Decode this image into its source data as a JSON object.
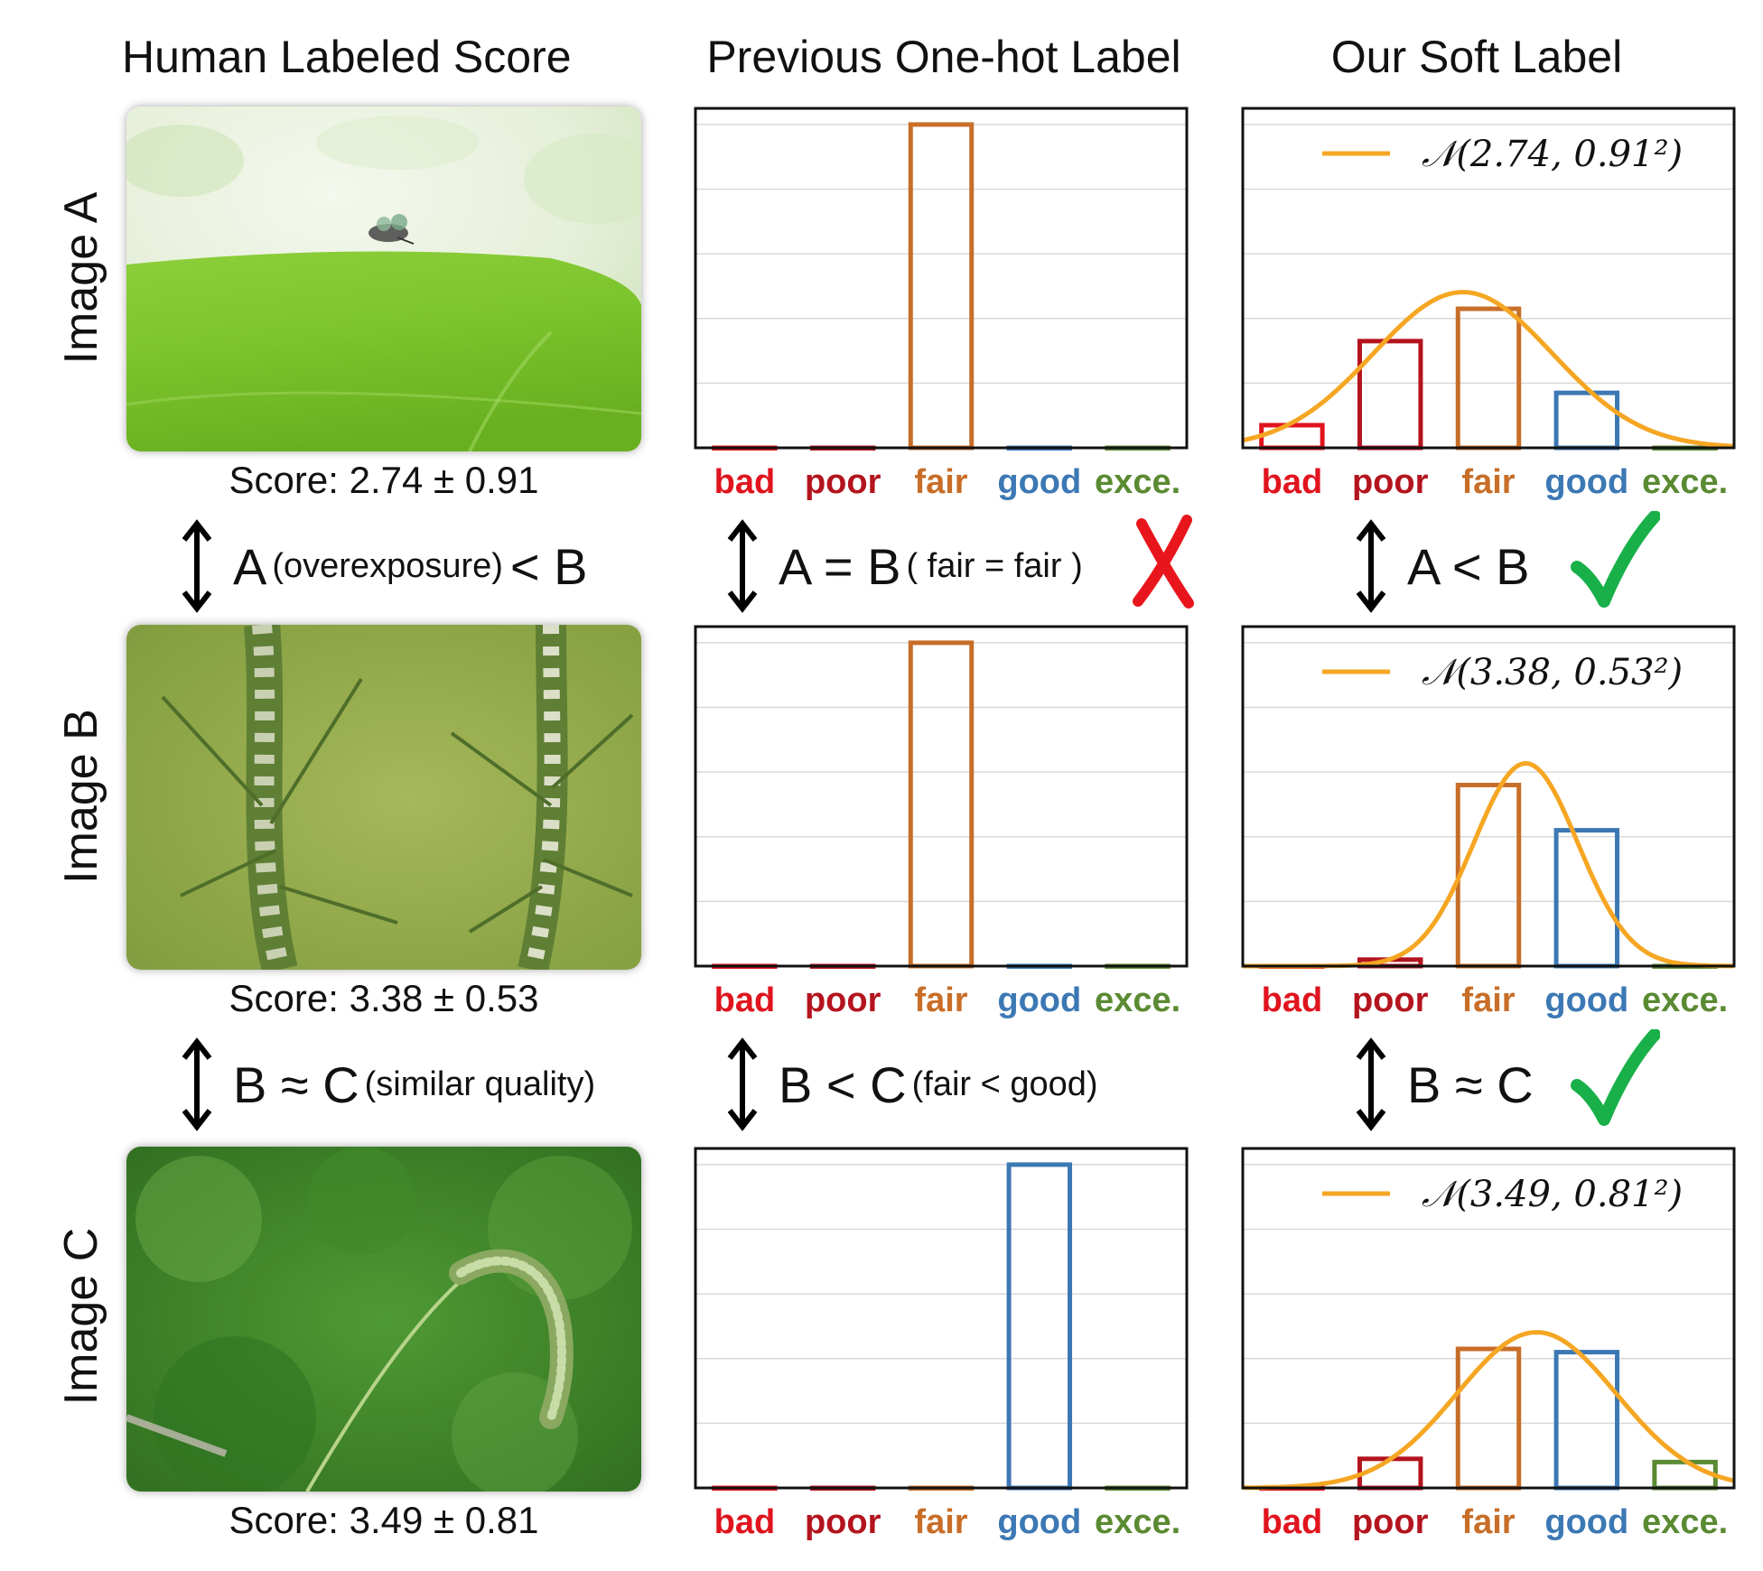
{
  "headers": {
    "col1": "Human Labeled Score",
    "col2": "Previous One-hot Label",
    "col3": "Our Soft Label"
  },
  "rows": [
    {
      "label": "Image A",
      "score_text": "Score: 2.74 ± 0.91"
    },
    {
      "label": "Image B",
      "score_text": "Score: 3.38 ± 0.53"
    },
    {
      "label": "Image C",
      "score_text": "Score: 3.49 ± 0.81"
    }
  ],
  "relations": {
    "human": [
      {
        "main": "A",
        "note": "(overexposure)",
        "rest": "< B"
      },
      {
        "main": "B ≈ C",
        "note": "(similar quality)",
        "rest": ""
      }
    ],
    "onehot": [
      {
        "main": "A = B",
        "note": "( fair = fair )",
        "rest": "",
        "verdict": "cross"
      },
      {
        "main": "B < C",
        "note": "(fair < good)",
        "rest": "",
        "verdict": ""
      }
    ],
    "soft": [
      {
        "main": "A < B",
        "note": "",
        "rest": "",
        "verdict": "check"
      },
      {
        "main": "B ≈ C",
        "note": "",
        "rest": "",
        "verdict": "check"
      }
    ]
  },
  "colors": {
    "bad": "#e0141e",
    "poor": "#b4141e",
    "fair": "#c86e28",
    "good": "#3c78b4",
    "exce": "#5a8a32",
    "curve": "#f5a623",
    "cross": "#e8161c",
    "check": "#19b04a"
  },
  "chart_data": [
    {
      "type": "bar",
      "panel": "onehot-A",
      "categories": [
        "bad",
        "poor",
        "fair",
        "good",
        "exce."
      ],
      "values": [
        0,
        0,
        1,
        0,
        0
      ],
      "ylim": [
        0,
        1.05
      ],
      "grid": true
    },
    {
      "type": "bar",
      "panel": "onehot-B",
      "categories": [
        "bad",
        "poor",
        "fair",
        "good",
        "exce."
      ],
      "values": [
        0,
        0,
        1,
        0,
        0
      ],
      "ylim": [
        0,
        1.05
      ],
      "grid": true
    },
    {
      "type": "bar",
      "panel": "onehot-C",
      "categories": [
        "bad",
        "poor",
        "fair",
        "good",
        "exce."
      ],
      "values": [
        0,
        0,
        0,
        1,
        0
      ],
      "ylim": [
        0,
        1.05
      ],
      "grid": true
    },
    {
      "type": "bar",
      "panel": "soft-A",
      "categories": [
        "bad",
        "poor",
        "fair",
        "good",
        "exce."
      ],
      "values": [
        0.07,
        0.33,
        0.43,
        0.17,
        0.0
      ],
      "ylim": [
        0,
        1.05
      ],
      "grid": true,
      "legend": "𝒩(2.74, 0.91²)",
      "legend_position": "top",
      "curve": {
        "mean": 2.74,
        "std": 0.91
      }
    },
    {
      "type": "bar",
      "panel": "soft-B",
      "categories": [
        "bad",
        "poor",
        "fair",
        "good",
        "exce."
      ],
      "values": [
        0.0,
        0.02,
        0.56,
        0.42,
        0.0
      ],
      "ylim": [
        0,
        1.05
      ],
      "grid": true,
      "legend": "𝒩(3.38, 0.53²)",
      "legend_position": "top",
      "curve": {
        "mean": 3.38,
        "std": 0.53
      }
    },
    {
      "type": "bar",
      "panel": "soft-C",
      "categories": [
        "bad",
        "poor",
        "fair",
        "good",
        "exce."
      ],
      "values": [
        0.0,
        0.09,
        0.43,
        0.42,
        0.08
      ],
      "ylim": [
        0,
        1.05
      ],
      "grid": true,
      "legend": "𝒩(3.49, 0.81²)",
      "legend_position": "top",
      "curve": {
        "mean": 3.49,
        "std": 0.81
      }
    }
  ]
}
